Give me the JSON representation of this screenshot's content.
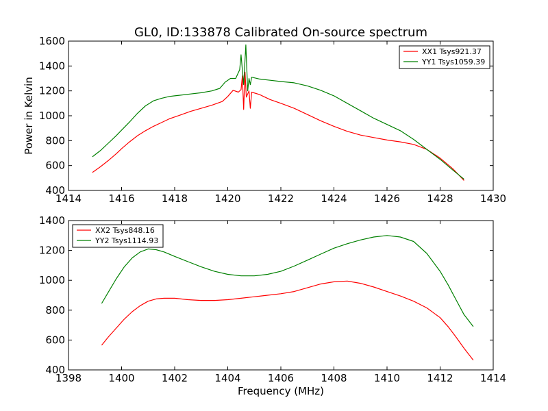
{
  "chart_data": [
    {
      "type": "line",
      "title": "GL0, ID:133878 Calibrated On-source spectrum",
      "xlabel": "",
      "ylabel": "Power in Kelvin",
      "xlim": [
        1414,
        1430
      ],
      "ylim": [
        400,
        1600
      ],
      "xticks": [
        1414,
        1416,
        1418,
        1420,
        1422,
        1424,
        1426,
        1428,
        1430
      ],
      "yticks": [
        400,
        600,
        800,
        1000,
        1200,
        1400,
        1600
      ],
      "grid": false,
      "legend_position": "top-right",
      "series": [
        {
          "name": "XX1 Tsys921.37",
          "color": "#ff0000",
          "points": [
            [
              1414.9,
              545
            ],
            [
              1415.2,
              590
            ],
            [
              1415.5,
              640
            ],
            [
              1415.8,
              695
            ],
            [
              1416.0,
              735
            ],
            [
              1416.3,
              790
            ],
            [
              1416.6,
              840
            ],
            [
              1416.9,
              880
            ],
            [
              1417.2,
              915
            ],
            [
              1417.5,
              945
            ],
            [
              1417.8,
              975
            ],
            [
              1418.2,
              1005
            ],
            [
              1418.6,
              1035
            ],
            [
              1419.0,
              1060
            ],
            [
              1419.4,
              1085
            ],
            [
              1419.8,
              1115
            ],
            [
              1420.0,
              1155
            ],
            [
              1420.2,
              1205
            ],
            [
              1420.4,
              1190
            ],
            [
              1420.5,
              1210
            ],
            [
              1420.55,
              1320
            ],
            [
              1420.6,
              1050
            ],
            [
              1420.65,
              1350
            ],
            [
              1420.7,
              1150
            ],
            [
              1420.8,
              1200
            ],
            [
              1420.85,
              1060
            ],
            [
              1420.9,
              1190
            ],
            [
              1421.2,
              1170
            ],
            [
              1421.6,
              1130
            ],
            [
              1422.0,
              1100
            ],
            [
              1422.5,
              1060
            ],
            [
              1423.0,
              1010
            ],
            [
              1423.5,
              960
            ],
            [
              1424.0,
              915
            ],
            [
              1424.5,
              875
            ],
            [
              1425.0,
              845
            ],
            [
              1425.5,
              825
            ],
            [
              1426.0,
              805
            ],
            [
              1426.5,
              790
            ],
            [
              1427.0,
              770
            ],
            [
              1427.5,
              730
            ],
            [
              1428.0,
              660
            ],
            [
              1428.5,
              570
            ],
            [
              1428.9,
              480
            ]
          ]
        },
        {
          "name": "YY1 Tsys1059.39",
          "color": "#008000",
          "points": [
            [
              1414.9,
              670
            ],
            [
              1415.2,
              720
            ],
            [
              1415.5,
              780
            ],
            [
              1415.8,
              840
            ],
            [
              1416.0,
              885
            ],
            [
              1416.3,
              950
            ],
            [
              1416.6,
              1020
            ],
            [
              1416.9,
              1080
            ],
            [
              1417.2,
              1120
            ],
            [
              1417.5,
              1140
            ],
            [
              1417.8,
              1155
            ],
            [
              1418.2,
              1165
            ],
            [
              1418.6,
              1175
            ],
            [
              1419.0,
              1185
            ],
            [
              1419.4,
              1200
            ],
            [
              1419.7,
              1220
            ],
            [
              1419.9,
              1270
            ],
            [
              1420.1,
              1300
            ],
            [
              1420.3,
              1300
            ],
            [
              1420.45,
              1370
            ],
            [
              1420.5,
              1490
            ],
            [
              1420.6,
              1250
            ],
            [
              1420.68,
              1570
            ],
            [
              1420.75,
              1200
            ],
            [
              1420.8,
              1300
            ],
            [
              1420.85,
              1250
            ],
            [
              1420.9,
              1310
            ],
            [
              1421.2,
              1295
            ],
            [
              1421.6,
              1285
            ],
            [
              1422.0,
              1275
            ],
            [
              1422.5,
              1265
            ],
            [
              1423.0,
              1240
            ],
            [
              1423.5,
              1205
            ],
            [
              1424.0,
              1160
            ],
            [
              1424.5,
              1100
            ],
            [
              1425.0,
              1040
            ],
            [
              1425.5,
              980
            ],
            [
              1426.0,
              930
            ],
            [
              1426.5,
              880
            ],
            [
              1427.0,
              810
            ],
            [
              1427.5,
              730
            ],
            [
              1428.0,
              650
            ],
            [
              1428.5,
              560
            ],
            [
              1428.9,
              490
            ]
          ]
        }
      ]
    },
    {
      "type": "line",
      "title": "",
      "xlabel": "Frequency (MHz)",
      "ylabel": "",
      "xlim": [
        1398,
        1414
      ],
      "ylim": [
        400,
        1400
      ],
      "xticks": [
        1398,
        1400,
        1402,
        1404,
        1406,
        1408,
        1410,
        1412,
        1414
      ],
      "yticks": [
        400,
        600,
        800,
        1000,
        1200,
        1400
      ],
      "grid": false,
      "legend_position": "top-left",
      "series": [
        {
          "name": "XX2 Tsys848.16",
          "color": "#ff0000",
          "points": [
            [
              1399.25,
              565
            ],
            [
              1399.5,
              620
            ],
            [
              1399.8,
              680
            ],
            [
              1400.1,
              740
            ],
            [
              1400.4,
              790
            ],
            [
              1400.7,
              830
            ],
            [
              1401.0,
              860
            ],
            [
              1401.3,
              875
            ],
            [
              1401.6,
              880
            ],
            [
              1402.0,
              880
            ],
            [
              1402.5,
              870
            ],
            [
              1403.0,
              865
            ],
            [
              1403.5,
              865
            ],
            [
              1404.0,
              870
            ],
            [
              1404.5,
              880
            ],
            [
              1405.0,
              890
            ],
            [
              1405.5,
              900
            ],
            [
              1406.0,
              910
            ],
            [
              1406.5,
              925
            ],
            [
              1407.0,
              950
            ],
            [
              1407.5,
              975
            ],
            [
              1408.0,
              990
            ],
            [
              1408.5,
              995
            ],
            [
              1409.0,
              980
            ],
            [
              1409.5,
              955
            ],
            [
              1410.0,
              925
            ],
            [
              1410.5,
              895
            ],
            [
              1411.0,
              860
            ],
            [
              1411.5,
              815
            ],
            [
              1412.0,
              750
            ],
            [
              1412.3,
              690
            ],
            [
              1412.6,
              620
            ],
            [
              1412.9,
              545
            ],
            [
              1413.25,
              465
            ]
          ]
        },
        {
          "name": "YY2 Tsys1114.93",
          "color": "#008000",
          "points": [
            [
              1399.25,
              845
            ],
            [
              1399.5,
              920
            ],
            [
              1399.8,
              1010
            ],
            [
              1400.1,
              1090
            ],
            [
              1400.4,
              1150
            ],
            [
              1400.7,
              1190
            ],
            [
              1401.0,
              1210
            ],
            [
              1401.3,
              1205
            ],
            [
              1401.6,
              1190
            ],
            [
              1402.0,
              1160
            ],
            [
              1402.5,
              1125
            ],
            [
              1403.0,
              1090
            ],
            [
              1403.5,
              1060
            ],
            [
              1404.0,
              1040
            ],
            [
              1404.5,
              1030
            ],
            [
              1405.0,
              1030
            ],
            [
              1405.5,
              1040
            ],
            [
              1406.0,
              1060
            ],
            [
              1406.5,
              1095
            ],
            [
              1407.0,
              1135
            ],
            [
              1407.5,
              1175
            ],
            [
              1408.0,
              1215
            ],
            [
              1408.5,
              1245
            ],
            [
              1409.0,
              1270
            ],
            [
              1409.5,
              1290
            ],
            [
              1410.0,
              1300
            ],
            [
              1410.5,
              1290
            ],
            [
              1411.0,
              1260
            ],
            [
              1411.5,
              1180
            ],
            [
              1412.0,
              1060
            ],
            [
              1412.3,
              970
            ],
            [
              1412.6,
              870
            ],
            [
              1412.9,
              770
            ],
            [
              1413.25,
              690
            ]
          ]
        }
      ]
    }
  ]
}
